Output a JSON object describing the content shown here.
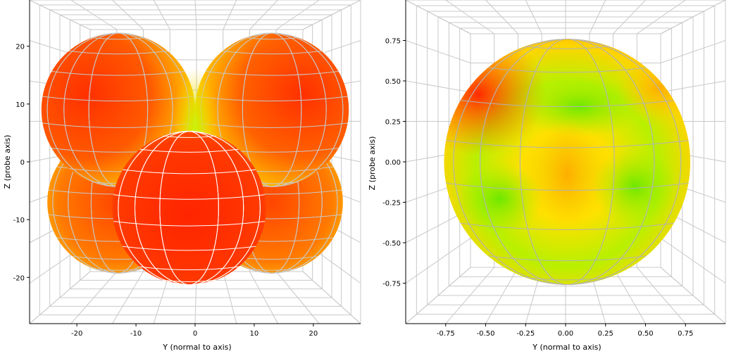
{
  "chart_data": [
    {
      "type": "surface3d",
      "title": "",
      "xlabel": "Y (normal to axis)",
      "ylabel": "Z (probe axis)",
      "xlim": [
        -28,
        28
      ],
      "ylim": [
        -28,
        28
      ],
      "x_ticks": [
        "-20",
        "-10",
        "0",
        "10",
        "20"
      ],
      "x_tick_values": [
        -20,
        -10,
        0,
        10,
        20
      ],
      "y_ticks": [
        "20",
        "10",
        "0",
        "-10",
        "-20"
      ],
      "y_tick_values": [
        20,
        10,
        0,
        -10,
        -20
      ],
      "grid": true,
      "lobes": [
        {
          "name": "upper-left",
          "cy": 9,
          "cx": -13,
          "r": 13
        },
        {
          "name": "upper-right",
          "cy": 9,
          "cx": 13,
          "r": 13
        },
        {
          "name": "lower-left",
          "cy": -7,
          "cx": -13,
          "r": 12
        },
        {
          "name": "lower-right",
          "cy": -7,
          "cx": 13,
          "r": 12
        },
        {
          "name": "front",
          "cy": -8,
          "cx": -1,
          "r": 13
        }
      ],
      "colors": {
        "high": "#ff2a00",
        "mid": "#ffcc00",
        "low": "#9cf000"
      }
    },
    {
      "type": "surface3d",
      "title": "",
      "xlabel": "Y (normal to axis)",
      "ylabel": "Z (probe axis)",
      "xlim": [
        -1.0,
        1.0
      ],
      "ylim": [
        -1.0,
        1.0
      ],
      "x_ticks": [
        "-0.75",
        "-0.50",
        "-0.25",
        "0.00",
        "0.25",
        "0.50",
        "0.75"
      ],
      "x_tick_values": [
        -0.75,
        -0.5,
        -0.25,
        0,
        0.25,
        0.5,
        0.75
      ],
      "y_ticks": [
        "0.75",
        "0.50",
        "0.25",
        "0.00",
        "-0.25",
        "-0.50",
        "-0.75"
      ],
      "y_tick_values": [
        0.75,
        0.5,
        0.25,
        0,
        -0.25,
        -0.5,
        -0.75
      ],
      "grid": true,
      "sphere": {
        "cx": 0.01,
        "cy": 0.0,
        "r": 0.77
      },
      "colors": {
        "high": "#ff3300",
        "mid": "#ffe000",
        "low": "#80ee00"
      }
    }
  ]
}
